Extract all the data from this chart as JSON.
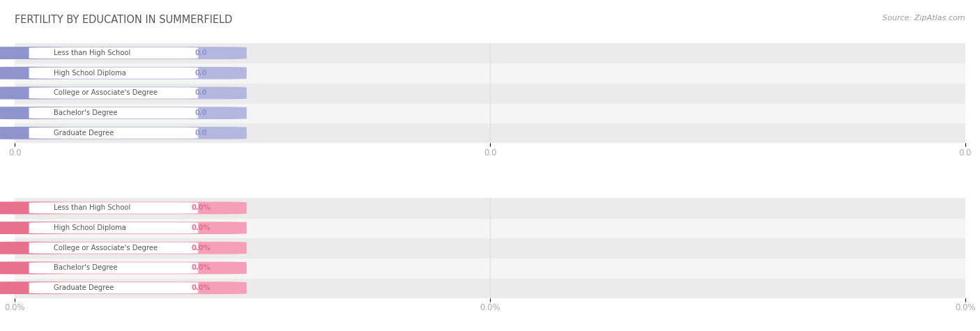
{
  "title": "FERTILITY BY EDUCATION IN SUMMERFIELD",
  "source": "Source: ZipAtlas.com",
  "categories": [
    "Less than High School",
    "High School Diploma",
    "College or Associate's Degree",
    "Bachelor's Degree",
    "Graduate Degree"
  ],
  "top_values": [
    0.0,
    0.0,
    0.0,
    0.0,
    0.0
  ],
  "bottom_values": [
    0.0,
    0.0,
    0.0,
    0.0,
    0.0
  ],
  "top_bar_color": "#b3b7e0",
  "top_bar_left_color": "#8f94cc",
  "top_value_label_color": "#9095c8",
  "top_label_color": "#555555",
  "bottom_bar_color": "#f5a0b8",
  "bottom_bar_left_color": "#e8728e",
  "bottom_value_label_color": "#e07090",
  "bottom_label_color": "#555555",
  "background_color": "#ffffff",
  "row_bg_odd": "#ebebeb",
  "row_bg_even": "#f5f5f5",
  "title_color": "#555555",
  "source_color": "#999999",
  "tick_color": "#aaaaaa",
  "grid_color": "#dddddd",
  "figsize": [
    14.06,
    4.75
  ],
  "dpi": 100
}
